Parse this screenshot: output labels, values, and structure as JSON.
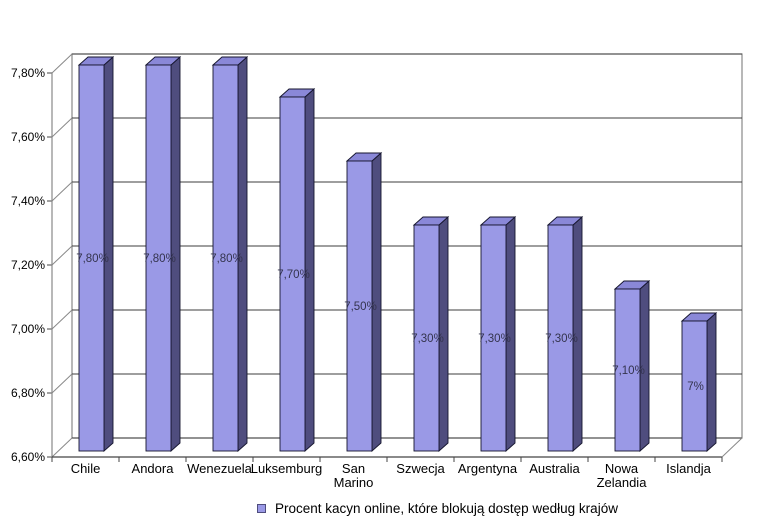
{
  "chart_data": {
    "type": "bar",
    "style": "3d-column",
    "title": "",
    "categories": [
      "Chile",
      "Andora",
      "Wenezuela",
      "Luksemburg",
      "San Marino",
      "Szwecja",
      "Argentyna",
      "Australia",
      "Nowa Zelandia",
      "Islandja"
    ],
    "values": [
      7.8,
      7.8,
      7.8,
      7.7,
      7.5,
      7.3,
      7.3,
      7.3,
      7.1,
      7.0
    ],
    "bar_labels": [
      "7,80%",
      "7,80%",
      "7,80%",
      "7,70%",
      "7,50%",
      "7,30%",
      "7,30%",
      "7,30%",
      "7,10%",
      "7%"
    ],
    "y_tick_labels": [
      "7,80%",
      "7,60%",
      "7,40%",
      "7,20%",
      "7,00%",
      "6,80%",
      "6,60%"
    ],
    "y_tick_values": [
      7.8,
      7.6,
      7.4,
      7.2,
      7.0,
      6.8,
      6.6
    ],
    "ylim": [
      6.6,
      7.8
    ],
    "y_step": 0.2,
    "grid": true,
    "legend": "Procent kacyn online, które blokują dostęp według krajów",
    "legend_position": "bottom",
    "xlabel": "",
    "ylabel": "",
    "colors": {
      "background": "#ffffff",
      "bar_front": "#9a99e6",
      "bar_top": "#8a88d8",
      "bar_side": "#4f4d7e",
      "bar_outline": "#15152e",
      "gridline": "#3c3c3c",
      "frame": "#888888",
      "axis": "#444444",
      "value_label": "#34344e",
      "text": "#000000"
    }
  }
}
